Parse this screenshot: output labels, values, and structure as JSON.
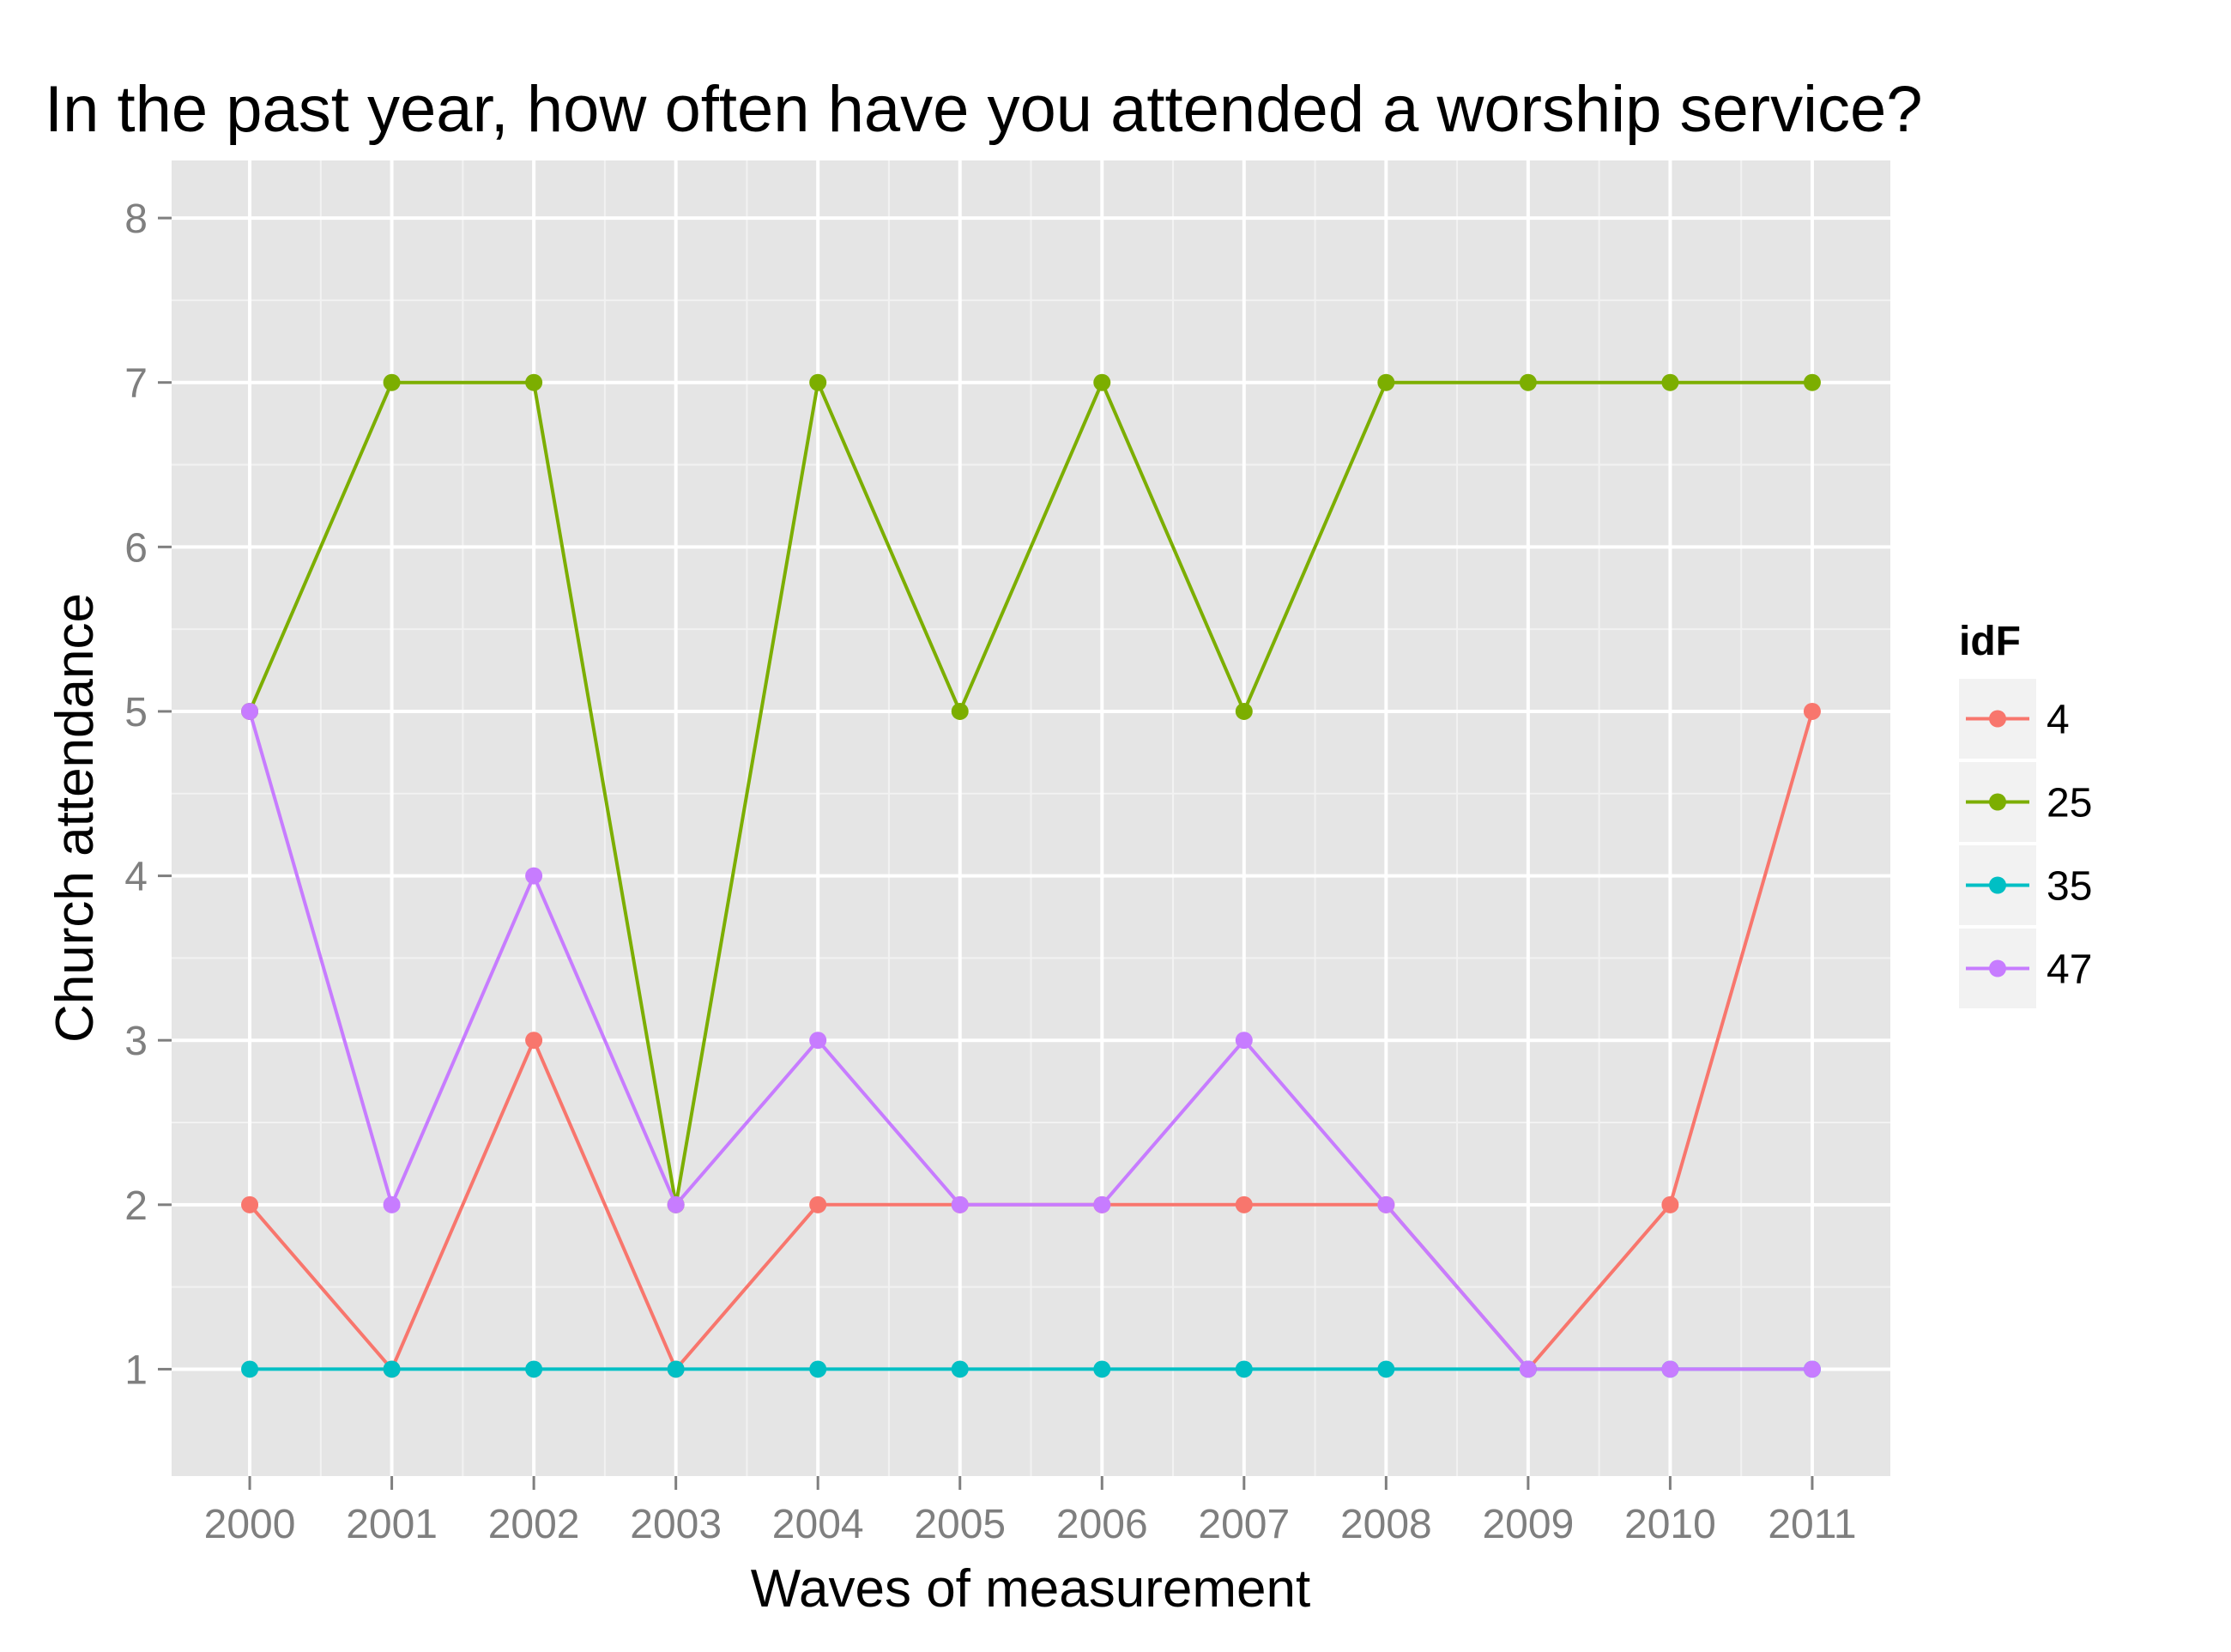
{
  "chart_data": {
    "type": "line",
    "title": "In the past year, how often have you attended a worship service?",
    "xlabel": "Waves of measurement",
    "ylabel": "Church attendance",
    "x": [
      2000,
      2001,
      2002,
      2003,
      2004,
      2005,
      2006,
      2007,
      2008,
      2009,
      2010,
      2011
    ],
    "xlim": [
      1999.45,
      2011.55
    ],
    "ylim": [
      0.35,
      8.35
    ],
    "yticks": [
      1,
      2,
      3,
      4,
      5,
      6,
      7,
      8
    ],
    "grid": true,
    "legend": {
      "title": "idF",
      "position": "right"
    },
    "series": [
      {
        "name": "4",
        "color": "#F8766D",
        "values": [
          2,
          1,
          3,
          1,
          2,
          2,
          2,
          2,
          2,
          1,
          2,
          5
        ]
      },
      {
        "name": "25",
        "color": "#7CAE00",
        "values": [
          5,
          7,
          7,
          2,
          7,
          5,
          7,
          5,
          7,
          7,
          7,
          7
        ]
      },
      {
        "name": "35",
        "color": "#00BFC4",
        "values": [
          1,
          1,
          1,
          1,
          1,
          1,
          1,
          1,
          1,
          1,
          1,
          1
        ]
      },
      {
        "name": "47",
        "color": "#C77CFF",
        "values": [
          5,
          2,
          4,
          2,
          3,
          2,
          2,
          3,
          2,
          1,
          1,
          1
        ]
      }
    ]
  }
}
